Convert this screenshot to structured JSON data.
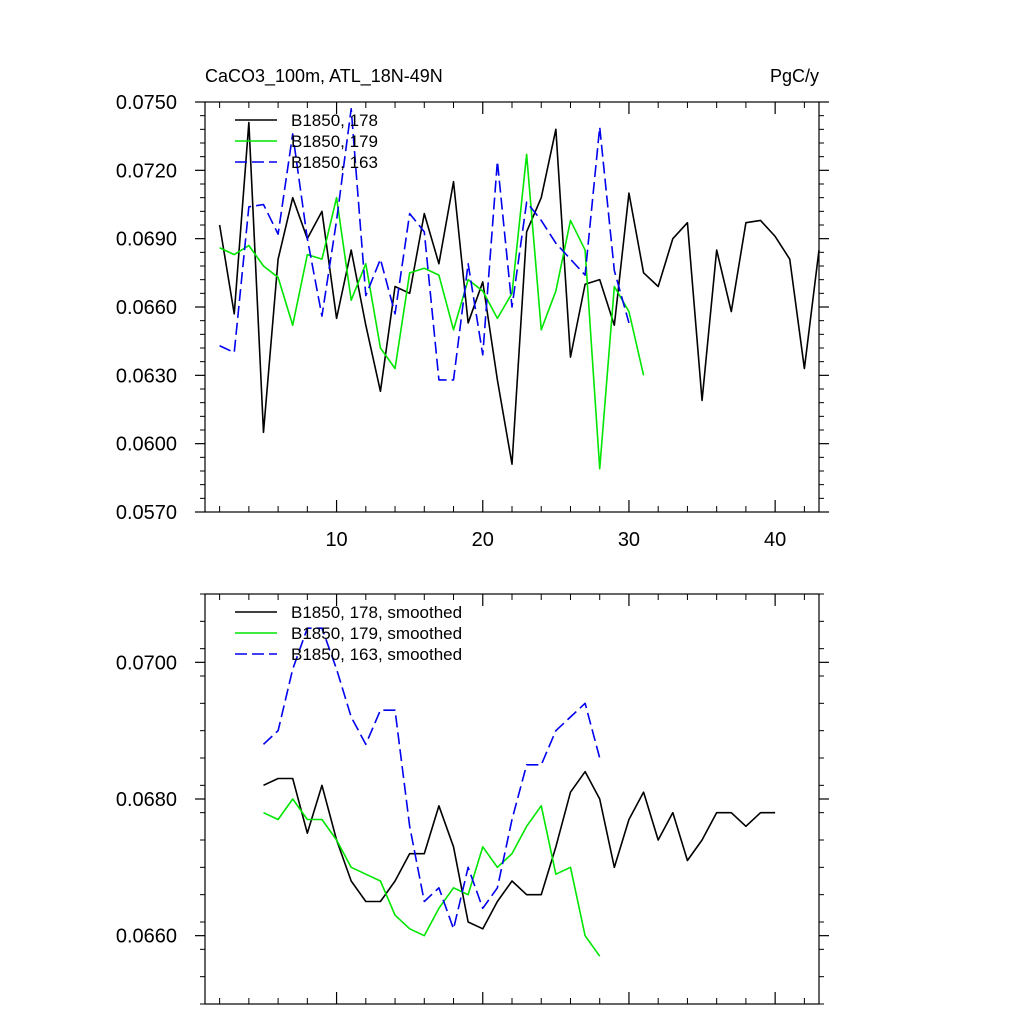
{
  "chart_data": [
    {
      "type": "line",
      "title": "CaCO3_100m, ATL_18N-49N",
      "units": "PgC/y",
      "xlim": [
        1,
        43
      ],
      "ylim": [
        0.057,
        0.075
      ],
      "x_ticks": [
        10,
        20,
        30,
        40
      ],
      "x_tick_labels": [
        "10",
        "20",
        "30",
        "40"
      ],
      "y_ticks": [
        0.057,
        0.06,
        0.063,
        0.066,
        0.069,
        0.072,
        0.075
      ],
      "y_tick_labels": [
        "0.0570",
        "0.0600",
        "0.0630",
        "0.0660",
        "0.0690",
        "0.0720",
        "0.0750"
      ],
      "legend_position": "top-left",
      "series": [
        {
          "name": "B1850, 178",
          "color": "#000000",
          "dash": "solid",
          "x_start": 2,
          "values": [
            0.0696,
            0.0657,
            0.0741,
            0.0605,
            0.0681,
            0.0708,
            0.069,
            0.0702,
            0.0655,
            0.0685,
            0.0652,
            0.0623,
            0.0669,
            0.0666,
            0.0701,
            0.0679,
            0.0715,
            0.0653,
            0.0671,
            0.0628,
            0.0591,
            0.0693,
            0.0708,
            0.0738,
            0.0638,
            0.067,
            0.0672,
            0.0652,
            0.071,
            0.0675,
            0.0669,
            0.069,
            0.0697,
            0.0619,
            0.0685,
            0.0658,
            0.0697,
            0.0698,
            0.0691,
            0.0681,
            0.0633,
            0.0685
          ]
        },
        {
          "name": "B1850, 179",
          "color": "#00e600",
          "dash": "solid",
          "x_start": 2,
          "values": [
            0.0686,
            0.0683,
            0.0687,
            0.0678,
            0.0673,
            0.0652,
            0.0683,
            0.0681,
            0.0708,
            0.0663,
            0.0679,
            0.0642,
            0.0633,
            0.0675,
            0.0677,
            0.0674,
            0.065,
            0.0672,
            0.0667,
            0.0655,
            0.0666,
            0.0727,
            0.065,
            0.0667,
            0.0698,
            0.0685,
            0.0589,
            0.0669,
            0.0658,
            0.063
          ]
        },
        {
          "name": "B1850, 163",
          "color": "#0000ee",
          "dash": "dashed",
          "x_start": 2,
          "values": [
            0.0643,
            0.064,
            0.0704,
            0.0705,
            0.0692,
            0.0736,
            0.069,
            0.0656,
            0.0698,
            0.0747,
            0.0665,
            0.0681,
            0.0657,
            0.0701,
            0.0693,
            0.0628,
            0.0628,
            0.0679,
            0.0639,
            0.0724,
            0.066,
            0.0706,
            0.0698,
            0.0688,
            0.0681,
            0.0674,
            0.0739,
            0.0676,
            0.0653
          ]
        }
      ]
    },
    {
      "type": "line",
      "xlim": [
        1,
        43
      ],
      "ylim": [
        0.065,
        0.071
      ],
      "x_ticks": [
        10,
        20,
        30,
        40
      ],
      "y_ticks": [
        0.066,
        0.068,
        0.07
      ],
      "y_tick_labels": [
        "0.0660",
        "0.0680",
        "0.0700"
      ],
      "legend_position": "top-left",
      "series": [
        {
          "name": "B1850, 178, smoothed",
          "color": "#000000",
          "dash": "solid",
          "x_start": 5,
          "values": [
            0.0682,
            0.0683,
            0.0683,
            0.0675,
            0.0682,
            0.0674,
            0.0668,
            0.0665,
            0.0665,
            0.0668,
            0.0672,
            0.0672,
            0.0679,
            0.0673,
            0.0662,
            0.0661,
            0.0665,
            0.0668,
            0.0666,
            0.0666,
            0.0673,
            0.0681,
            0.0684,
            0.068,
            0.067,
            0.0677,
            0.0681,
            0.0674,
            0.0678,
            0.0671,
            0.0674,
            0.0678,
            0.0678,
            0.0676,
            0.0678,
            0.0678
          ]
        },
        {
          "name": "B1850, 179, smoothed",
          "color": "#00e600",
          "dash": "solid",
          "x_start": 5,
          "values": [
            0.0678,
            0.0677,
            0.068,
            0.0677,
            0.0677,
            0.0674,
            0.067,
            0.0669,
            0.0668,
            0.0663,
            0.0661,
            0.066,
            0.0664,
            0.0667,
            0.0666,
            0.0673,
            0.067,
            0.0672,
            0.0676,
            0.0679,
            0.0669,
            0.067,
            0.066,
            0.0657
          ]
        },
        {
          "name": "B1850, 163, smoothed",
          "color": "#0000ee",
          "dash": "dashed",
          "x_start": 5,
          "values": [
            0.0688,
            0.069,
            0.0699,
            0.0705,
            0.0705,
            0.0699,
            0.0692,
            0.0688,
            0.0693,
            0.0693,
            0.0676,
            0.0665,
            0.0667,
            0.0661,
            0.067,
            0.0664,
            0.0667,
            0.0677,
            0.0685,
            0.0685,
            0.069,
            0.0692,
            0.0694,
            0.0686
          ]
        }
      ]
    }
  ]
}
